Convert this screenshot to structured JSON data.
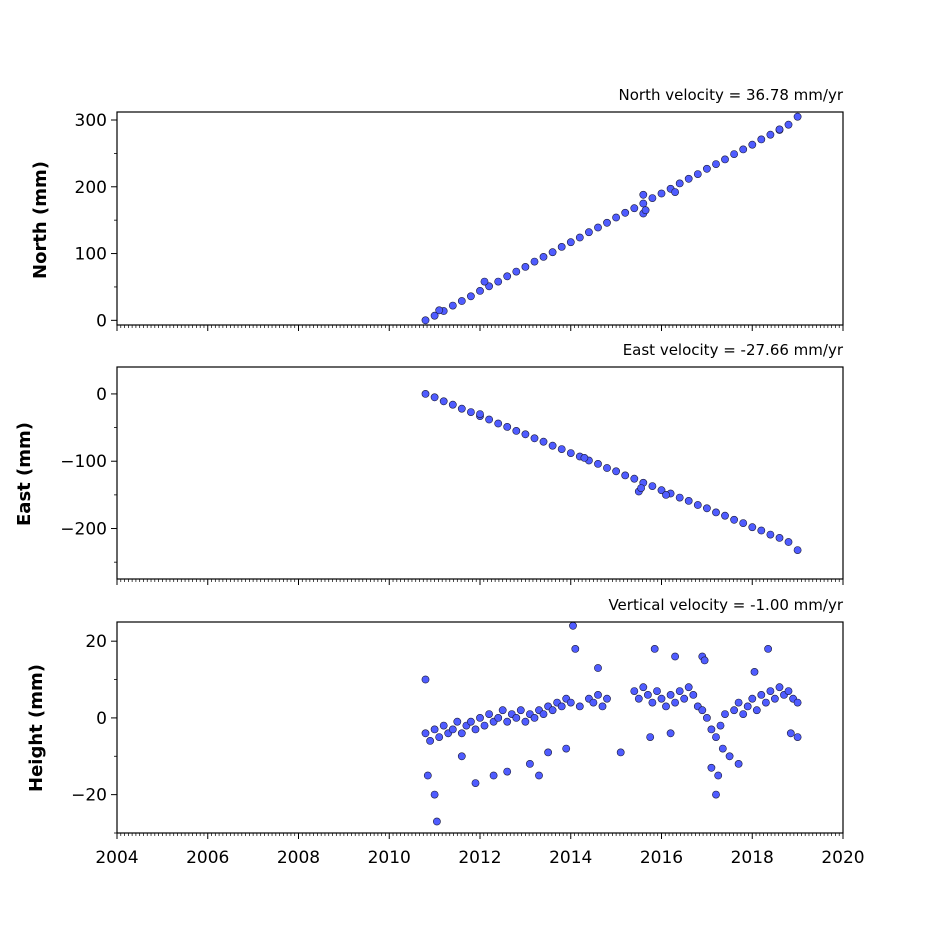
{
  "chart_data": [
    {
      "type": "scatter",
      "title": "North velocity = 36.78 mm/yr",
      "xlabel": "",
      "ylabel": "North (mm)",
      "xlim": [
        2004,
        2020
      ],
      "ylim": [
        -7,
        312
      ],
      "xticks": [
        2004,
        2006,
        2008,
        2010,
        2012,
        2014,
        2016,
        2018,
        2020
      ],
      "yticks": [
        0,
        100,
        200,
        300
      ],
      "ytick_labels": [
        "0",
        "100",
        "200",
        "300"
      ],
      "show_x_tick_labels": false,
      "grid": false,
      "series": [
        {
          "marker_color": "#4f5cff",
          "edge_color": "#1a1a3a",
          "x": [
            2010.8,
            2011.0,
            2011.2,
            2011.4,
            2011.6,
            2011.8,
            2012.0,
            2012.2,
            2012.4,
            2012.6,
            2012.8,
            2013.0,
            2013.2,
            2013.4,
            2013.6,
            2013.8,
            2014.0,
            2014.2,
            2014.4,
            2014.6,
            2014.8,
            2015.0,
            2015.2,
            2015.4,
            2015.6,
            2015.8,
            2016.0,
            2016.2,
            2016.4,
            2016.6,
            2016.8,
            2017.0,
            2017.2,
            2017.4,
            2017.6,
            2017.8,
            2018.0,
            2018.2,
            2018.4,
            2018.6,
            2018.8,
            2019.0
          ],
          "y": [
            0,
            7,
            14,
            22,
            29,
            36,
            44,
            51,
            58,
            66,
            73,
            80,
            88,
            95,
            102,
            110,
            117,
            124,
            132,
            139,
            146,
            154,
            161,
            168,
            175,
            183,
            190,
            197,
            205,
            212,
            219,
            227,
            234,
            241,
            249,
            256,
            263,
            271,
            278,
            285,
            293,
            305
          ]
        },
        {
          "marker_color": "#4f5cff",
          "edge_color": "#1a1a3a",
          "x": [
            2011.1,
            2012.1,
            2015.6,
            2015.65,
            2015.6,
            2016.3,
            2018.6
          ],
          "y": [
            15,
            58,
            160,
            165,
            188,
            192,
            286
          ]
        }
      ]
    },
    {
      "type": "scatter",
      "title": "East velocity = -27.66 mm/yr",
      "xlabel": "",
      "ylabel": "East (mm)",
      "xlim": [
        2004,
        2020
      ],
      "ylim": [
        -275,
        40
      ],
      "xticks": [
        2004,
        2006,
        2008,
        2010,
        2012,
        2014,
        2016,
        2018,
        2020
      ],
      "yticks": [
        0,
        -100,
        -200
      ],
      "ytick_labels": [
        "0",
        "−100",
        "−200"
      ],
      "show_x_tick_labels": false,
      "grid": false,
      "series": [
        {
          "marker_color": "#4f5cff",
          "edge_color": "#1a1a3a",
          "x": [
            2010.8,
            2011.0,
            2011.2,
            2011.4,
            2011.6,
            2011.8,
            2012.0,
            2012.2,
            2012.4,
            2012.6,
            2012.8,
            2013.0,
            2013.2,
            2013.4,
            2013.6,
            2013.8,
            2014.0,
            2014.2,
            2014.4,
            2014.6,
            2014.8,
            2015.0,
            2015.2,
            2015.4,
            2015.6,
            2015.8,
            2016.0,
            2016.2,
            2016.4,
            2016.6,
            2016.8,
            2017.0,
            2017.2,
            2017.4,
            2017.6,
            2017.8,
            2018.0,
            2018.2,
            2018.4,
            2018.6,
            2018.8,
            2019.0
          ],
          "y": [
            0,
            -5,
            -11,
            -16,
            -22,
            -27,
            -33,
            -38,
            -44,
            -49,
            -55,
            -60,
            -66,
            -71,
            -77,
            -82,
            -88,
            -93,
            -99,
            -104,
            -110,
            -115,
            -121,
            -126,
            -132,
            -137,
            -143,
            -148,
            -154,
            -159,
            -165,
            -170,
            -176,
            -181,
            -187,
            -192,
            -198,
            -203,
            -209,
            -214,
            -220,
            -232
          ]
        },
        {
          "marker_color": "#4f5cff",
          "edge_color": "#1a1a3a",
          "x": [
            2012.0,
            2014.3,
            2015.5,
            2015.55,
            2016.1
          ],
          "y": [
            -30,
            -95,
            -145,
            -140,
            -150
          ]
        }
      ]
    },
    {
      "type": "scatter",
      "title": "Vertical velocity = -1.00 mm/yr",
      "xlabel": "",
      "ylabel": "Height (mm)",
      "xlim": [
        2004,
        2020
      ],
      "ylim": [
        -30,
        25
      ],
      "xticks": [
        2004,
        2006,
        2008,
        2010,
        2012,
        2014,
        2016,
        2018,
        2020
      ],
      "xtick_labels": [
        "2004",
        "2006",
        "2008",
        "2010",
        "2012",
        "2014",
        "2016",
        "2018",
        "2020"
      ],
      "yticks": [
        20,
        0,
        -20
      ],
      "ytick_labels": [
        "20",
        "0",
        "−20"
      ],
      "show_x_tick_labels": true,
      "grid": false,
      "series": [
        {
          "marker_color": "#4f5cff",
          "edge_color": "#1a1a3a",
          "x": [
            2010.8,
            2010.9,
            2011.0,
            2011.1,
            2011.2,
            2011.3,
            2011.4,
            2011.5,
            2011.6,
            2011.7,
            2011.8,
            2011.9,
            2012.0,
            2012.1,
            2012.2,
            2012.3,
            2012.4,
            2012.5,
            2012.6,
            2012.7,
            2012.8,
            2012.9,
            2013.0,
            2013.1,
            2013.2,
            2013.3,
            2013.4,
            2013.5,
            2013.6,
            2013.7,
            2013.8,
            2013.9,
            2014.0,
            2014.2,
            2014.4,
            2014.5,
            2014.6,
            2014.7,
            2014.8,
            2015.4,
            2015.5,
            2015.6,
            2015.7,
            2015.8,
            2015.9,
            2016.0,
            2016.1,
            2016.2,
            2016.3,
            2016.4,
            2016.5,
            2016.6,
            2016.7,
            2016.8,
            2016.9,
            2017.0,
            2017.1,
            2017.2,
            2017.3,
            2017.4,
            2017.6,
            2017.7,
            2017.8,
            2017.9,
            2018.0,
            2018.1,
            2018.2,
            2018.3,
            2018.4,
            2018.5,
            2018.6,
            2018.7,
            2018.8,
            2018.9,
            2019.0
          ],
          "y": [
            -4,
            -6,
            -3,
            -5,
            -2,
            -4,
            -3,
            -1,
            -4,
            -2,
            -1,
            -3,
            0,
            -2,
            1,
            -1,
            0,
            2,
            -1,
            1,
            0,
            2,
            -1,
            1,
            0,
            2,
            1,
            3,
            2,
            4,
            3,
            5,
            4,
            3,
            5,
            4,
            6,
            3,
            5,
            7,
            5,
            8,
            6,
            4,
            7,
            5,
            3,
            6,
            4,
            7,
            5,
            8,
            6,
            3,
            2,
            0,
            -3,
            -5,
            -2,
            1,
            2,
            4,
            1,
            3,
            5,
            2,
            6,
            4,
            7,
            5,
            8,
            6,
            7,
            5,
            4
          ]
        },
        {
          "marker_color": "#4f5cff",
          "edge_color": "#1a1a3a",
          "x": [
            2010.8,
            2010.85,
            2011.0,
            2011.05,
            2011.6,
            2011.9,
            2012.3,
            2012.6,
            2013.1,
            2013.3,
            2013.5,
            2013.9,
            2014.05,
            2014.1,
            2014.6,
            2015.1,
            2015.75,
            2015.85,
            2016.2,
            2016.3,
            2016.9,
            2016.95,
            2017.1,
            2017.2,
            2017.25,
            2017.35,
            2017.5,
            2017.7,
            2018.05,
            2018.35,
            2018.85,
            2019.0
          ],
          "y": [
            10,
            -15,
            -20,
            -27,
            -10,
            -17,
            -15,
            -14,
            -12,
            -15,
            -9,
            -8,
            24,
            18,
            13,
            -9,
            -5,
            18,
            -4,
            16,
            16,
            15,
            -13,
            -20,
            -15,
            -8,
            -10,
            -12,
            12,
            18,
            -4,
            -5
          ]
        }
      ]
    }
  ]
}
